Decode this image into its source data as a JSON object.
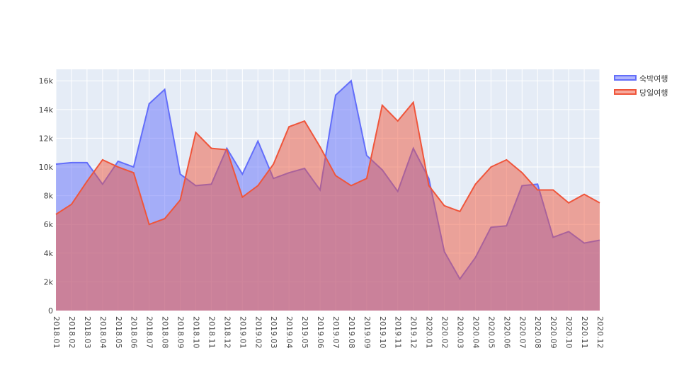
{
  "chart_data": {
    "type": "area",
    "title": "",
    "xlabel": "",
    "ylabel": "",
    "ylim": [
      0,
      16800
    ],
    "y_ticks": [
      0,
      2000,
      4000,
      6000,
      8000,
      10000,
      12000,
      14000,
      16000
    ],
    "y_tick_labels": [
      "0",
      "2k",
      "4k",
      "6k",
      "8k",
      "10k",
      "12k",
      "14k",
      "16k"
    ],
    "categories": [
      "2018.01",
      "2018.02",
      "2018.03",
      "2018.04",
      "2018.05",
      "2018.06",
      "2018.07",
      "2018.08",
      "2018.09",
      "2018.10",
      "2018.11",
      "2018.12",
      "2019.01",
      "2019.02",
      "2019.03",
      "2019.04",
      "2019.05",
      "2019.06",
      "2019.07",
      "2019.08",
      "2019.09",
      "2019.10",
      "2019.11",
      "2019.12",
      "2020.01",
      "2020.02",
      "2020.03",
      "2020.04",
      "2020.05",
      "2020.06",
      "2020.07",
      "2020.08",
      "2020.09",
      "2020.10",
      "2020.11",
      "2020.12"
    ],
    "series": [
      {
        "name": "숙박여행",
        "color": "#636efa",
        "values": [
          10200,
          10300,
          10300,
          8800,
          10400,
          10000,
          14400,
          15400,
          9500,
          8700,
          8800,
          11300,
          9500,
          11800,
          9200,
          9600,
          9900,
          8400,
          15000,
          16000,
          10800,
          9800,
          8300,
          11300,
          9200,
          4100,
          2200,
          3700,
          5800,
          5900,
          8700,
          8800,
          5100,
          5500,
          4700,
          4900
        ]
      },
      {
        "name": "당일여행",
        "color": "#ef553b",
        "values": [
          6700,
          7400,
          9000,
          10500,
          10000,
          9600,
          6000,
          6400,
          7700,
          12400,
          11300,
          11200,
          7900,
          8700,
          10200,
          12800,
          13200,
          11400,
          9400,
          8700,
          9200,
          14300,
          13200,
          14500,
          8700,
          7300,
          6900,
          8800,
          10000,
          10500,
          9600,
          8400,
          8400,
          7500,
          8100,
          7500
        ]
      }
    ],
    "legend_position": "top-right",
    "grid": true
  }
}
